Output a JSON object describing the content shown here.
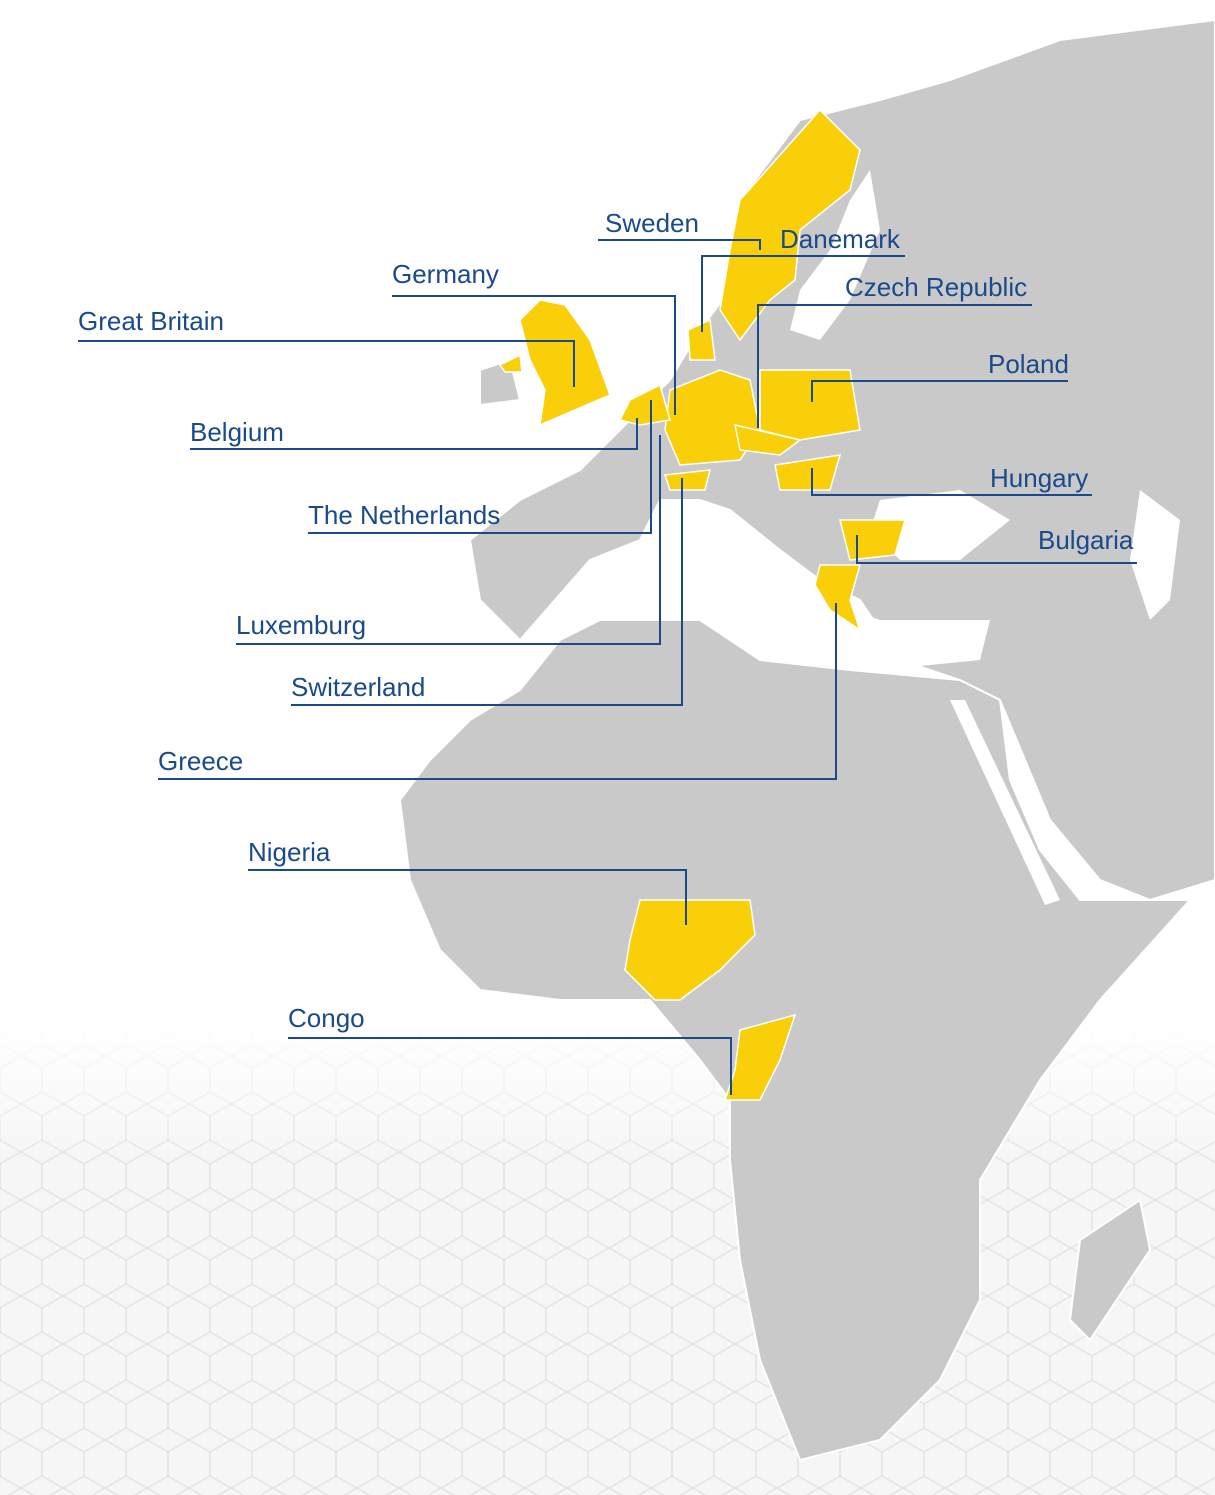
{
  "countries": [
    "Sweden",
    "Danemark",
    "Germany",
    "Czech Republic",
    "Great Britain",
    "Poland",
    "Belgium",
    "Hungary",
    "The Netherlands",
    "Bulgaria",
    "Luxemburg",
    "Switzerland",
    "Greece",
    "Nigeria",
    "Congo"
  ]
}
